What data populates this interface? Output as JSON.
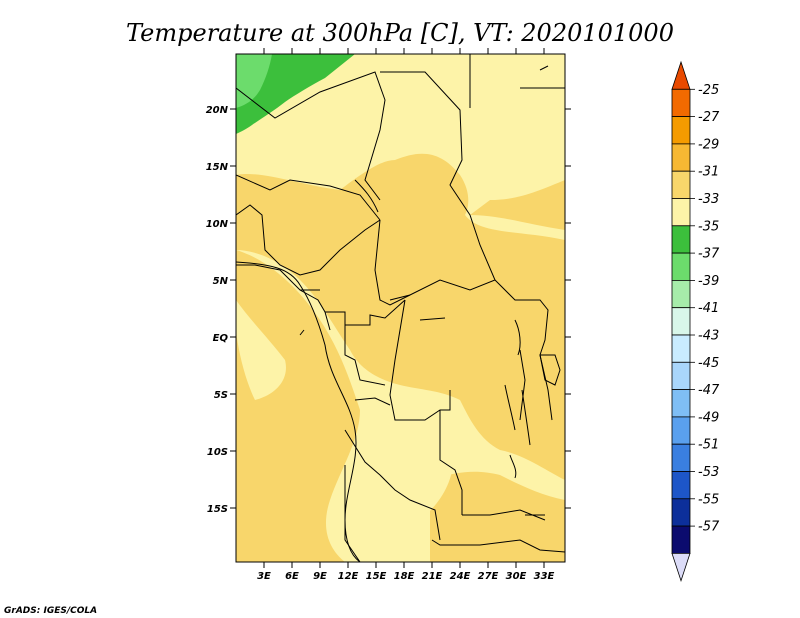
{
  "title": "Temperature at 300hPa [C], VT: 2020101000",
  "credit": "GrADS: IGES/COLA",
  "map": {
    "lat_labels": [
      "20N",
      "15N",
      "10N",
      "5N",
      "EQ",
      "5S",
      "10S",
      "15S"
    ],
    "lon_labels": [
      "3E",
      "6E",
      "9E",
      "12E",
      "15E",
      "18E",
      "21E",
      "24E",
      "27E",
      "30E",
      "33E"
    ]
  },
  "colorbar": {
    "labels": [
      "-25",
      "-27",
      "-29",
      "-31",
      "-33",
      "-35",
      "-37",
      "-39",
      "-41",
      "-43",
      "-45",
      "-47",
      "-49",
      "-51",
      "-53",
      "-55",
      "-57"
    ],
    "colors": [
      "#e84a00",
      "#f26a00",
      "#f59b00",
      "#f7b833",
      "#f8d66b",
      "#fdf3a8",
      "#3cbf3c",
      "#6cdc6c",
      "#a6ecaa",
      "#d9f7ea",
      "#c9ecff",
      "#a9d6fb",
      "#7fbef5",
      "#5aa0ee",
      "#3a7fe0",
      "#1d56c8",
      "#0c2f9a",
      "#0b0b6e",
      "#dcdcf8"
    ]
  }
}
